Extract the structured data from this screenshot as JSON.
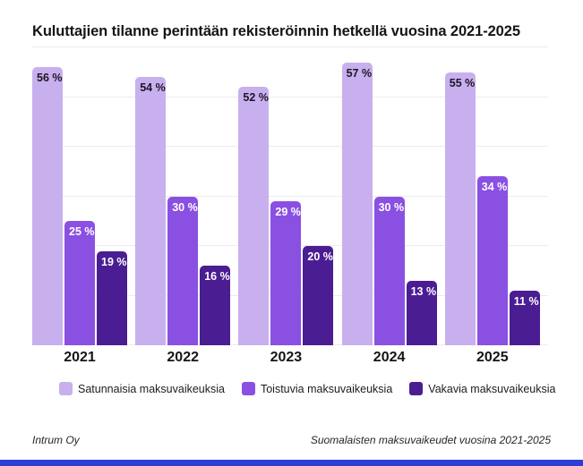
{
  "title": "Kuluttajien tilanne perintään rekisteröinnin hetkellä vuosina 2021-2025",
  "chart_data": {
    "type": "bar",
    "title": "Kuluttajien tilanne perintään rekisteröinnin hetkellä vuosina 2021-2025",
    "categories": [
      "2021",
      "2022",
      "2023",
      "2024",
      "2025"
    ],
    "series": [
      {
        "name": "Satunnaisia maksuvaikeuksia",
        "values": [
          56,
          54,
          52,
          57,
          55
        ],
        "color": "#c8b0ee",
        "label_color": "#1d1526"
      },
      {
        "name": "Toistuvia maksuvaikeuksia",
        "values": [
          25,
          30,
          29,
          30,
          34
        ],
        "color": "#8a50e2",
        "label_color": "#ffffff"
      },
      {
        "name": "Vakavia maksuvaikeuksia",
        "values": [
          19,
          16,
          20,
          13,
          11
        ],
        "color": "#4b1d92",
        "label_color": "#ffffff"
      }
    ],
    "value_suffix": " %",
    "xlabel": "",
    "ylabel": "",
    "ylim": [
      0,
      60
    ],
    "gridline_step": 10,
    "grid": true,
    "legend_position": "bottom"
  },
  "footer": {
    "left": "Intrum Oy",
    "right": "Suomalaisten maksuvaikeudet vuosina 2021-2025"
  },
  "colors": {
    "background": "#ffffff",
    "gridline": "#ececee",
    "text": "#141419",
    "brand_bottom_bar": "#2b3fd3"
  }
}
